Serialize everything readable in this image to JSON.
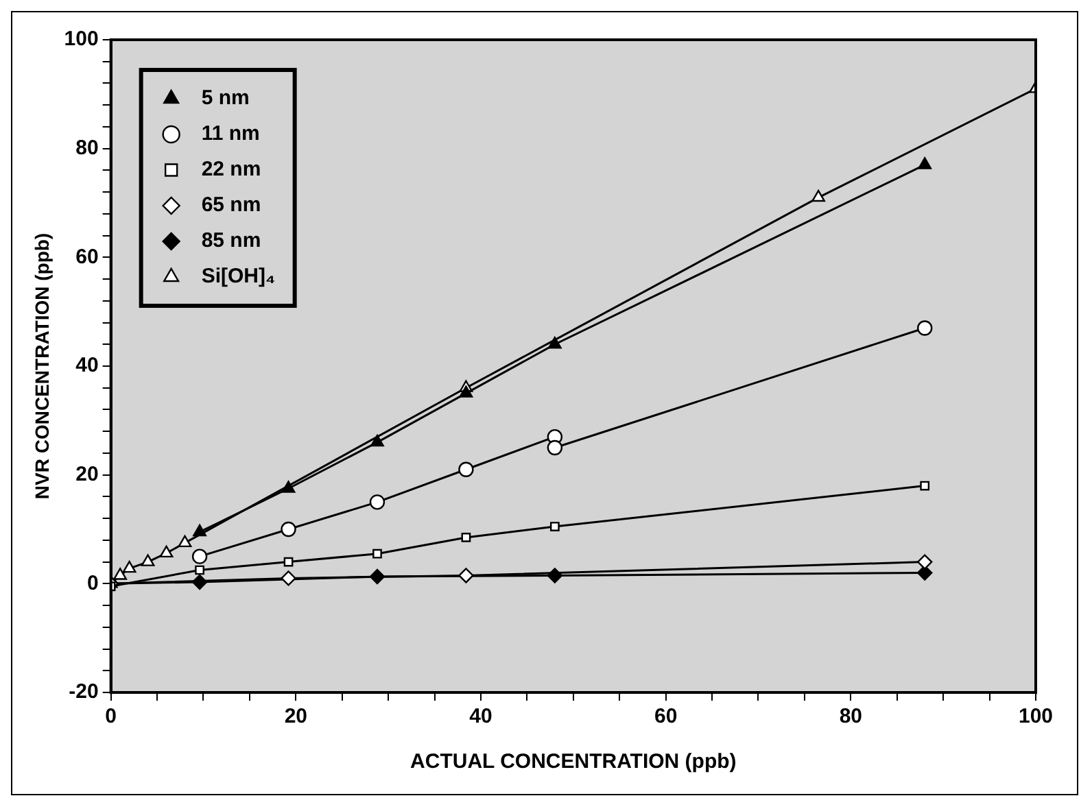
{
  "chart_data": {
    "type": "line",
    "xlabel": "ACTUAL CONCENTRATION (ppb)",
    "ylabel": "NVR CONCENTRATION (ppb)",
    "xlim": [
      0,
      100
    ],
    "ylim": [
      -20,
      100
    ],
    "xticks": [
      0,
      {
        "value": 5,
        "label": null
      },
      {
        "value": 10,
        "label": null
      },
      {
        "value": 15,
        "label": null
      },
      20,
      {
        "value": 25,
        "label": null
      },
      {
        "value": 30,
        "label": null
      },
      {
        "value": 35,
        "label": null
      },
      40,
      {
        "value": 45,
        "label": null
      },
      {
        "value": 50,
        "label": null
      },
      {
        "value": 55,
        "label": null
      },
      60,
      {
        "value": 65,
        "label": null
      },
      {
        "value": 70,
        "label": null
      },
      {
        "value": 75,
        "label": null
      },
      80,
      {
        "value": 85,
        "label": null
      },
      {
        "value": 90,
        "label": null
      },
      {
        "value": 95,
        "label": null
      },
      100
    ],
    "yticks": [
      -20,
      {
        "value": -16,
        "label": null
      },
      {
        "value": -12,
        "label": null
      },
      {
        "value": -8,
        "label": null
      },
      {
        "value": -4,
        "label": null
      },
      0,
      {
        "value": 4,
        "label": null
      },
      {
        "value": 8,
        "label": null
      },
      {
        "value": 12,
        "label": null
      },
      {
        "value": 16,
        "label": null
      },
      20,
      {
        "value": 24,
        "label": null
      },
      {
        "value": 28,
        "label": null
      },
      {
        "value": 32,
        "label": null
      },
      {
        "value": 36,
        "label": null
      },
      40,
      {
        "value": 44,
        "label": null
      },
      {
        "value": 48,
        "label": null
      },
      {
        "value": 52,
        "label": null
      },
      {
        "value": 56,
        "label": null
      },
      60,
      {
        "value": 64,
        "label": null
      },
      {
        "value": 68,
        "label": null
      },
      {
        "value": 72,
        "label": null
      },
      {
        "value": 76,
        "label": null
      },
      80,
      {
        "value": 84,
        "label": null
      },
      {
        "value": 88,
        "label": null
      },
      {
        "value": 92,
        "label": null
      },
      {
        "value": 96,
        "label": null
      },
      100
    ],
    "grid": false,
    "legend": "top left",
    "line_style": "solid",
    "series": [
      {
        "name": "5 nm",
        "color": "#000000",
        "marker": "triangle",
        "x": [
          9.6,
          19.2,
          28.8,
          38.4,
          48,
          88
        ],
        "values": [
          9.5,
          17.5,
          26,
          35,
          44,
          77
        ]
      },
      {
        "name": "11 nm",
        "color": "#ffffff",
        "marker": "circle",
        "x": [
          9.6,
          19.2,
          28.8,
          38.4,
          48,
          48,
          88
        ],
        "values": [
          5,
          10,
          15,
          21,
          27,
          25,
          47
        ]
      },
      {
        "name": "22 nm",
        "color": "#ffffff",
        "marker": "square",
        "x": [
          0,
          9.6,
          19.2,
          28.8,
          38.4,
          48,
          88
        ],
        "values": [
          -0.5,
          2.5,
          4,
          5.5,
          8.5,
          10.5,
          18
        ]
      },
      {
        "name": "65 nm",
        "color": "#ffffff",
        "marker": "diamond",
        "x": [
          0,
          19.2,
          38.4,
          88
        ],
        "values": [
          0,
          1,
          1.5,
          4
        ]
      },
      {
        "name": "85 nm",
        "color": "#000000",
        "marker": "diamond",
        "x": [
          0,
          9.6,
          28.8,
          48,
          88
        ],
        "values": [
          0,
          0.3,
          1.3,
          1.5,
          2
        ]
      },
      {
        "name": "Si[OH]₄",
        "color": "#ffffff",
        "marker": "triangle",
        "x": [
          0,
          1,
          2,
          4,
          6,
          8,
          38.4,
          76.5,
          100
        ],
        "values": [
          0,
          1.5,
          2.8,
          4,
          5.6,
          7.5,
          36,
          71,
          91
        ]
      }
    ]
  }
}
